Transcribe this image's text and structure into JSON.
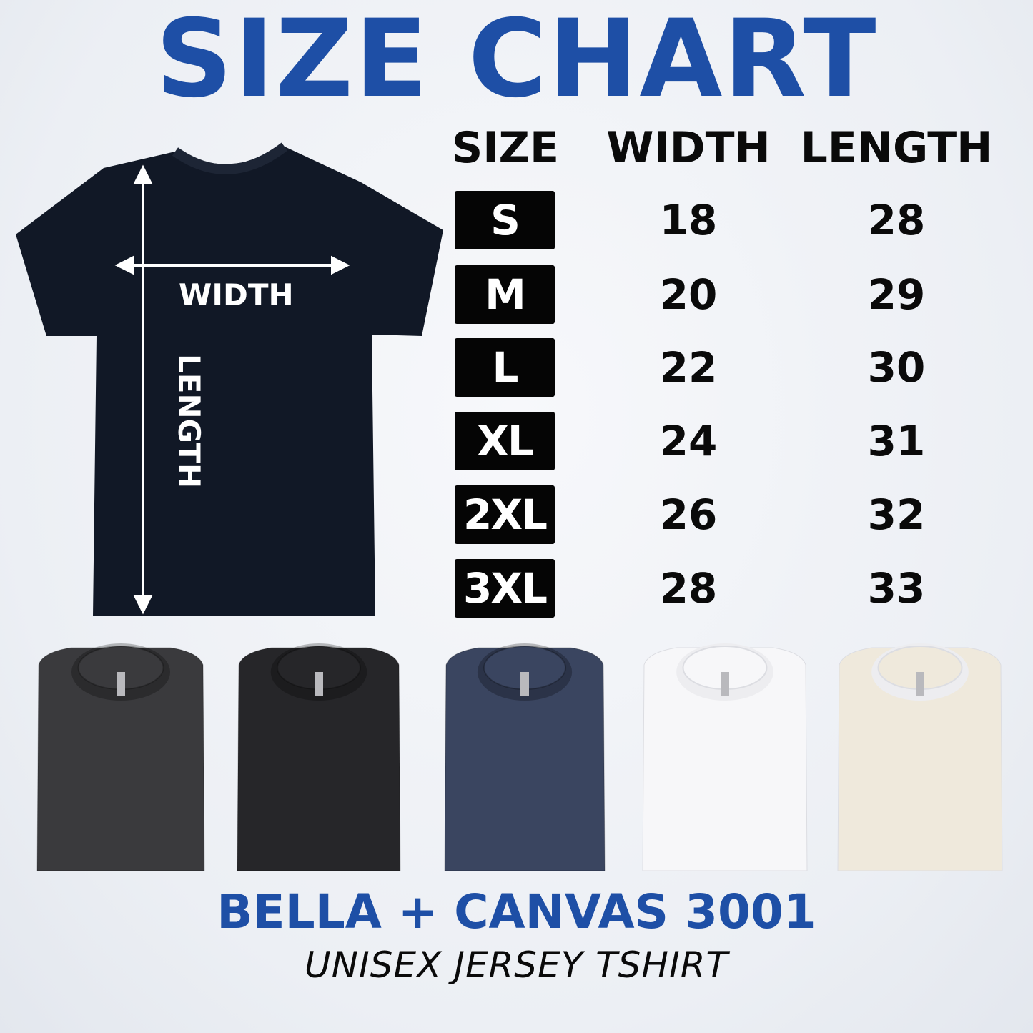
{
  "title": "SIZE CHART",
  "table": {
    "headers": [
      "SIZE",
      "WIDTH",
      "LENGTH"
    ],
    "rows": [
      {
        "size": "S",
        "width": "18",
        "length": "28"
      },
      {
        "size": "M",
        "width": "20",
        "length": "29"
      },
      {
        "size": "L",
        "width": "22",
        "length": "30"
      },
      {
        "size": "XL",
        "width": "24",
        "length": "31"
      },
      {
        "size": "2XL",
        "width": "26",
        "length": "32"
      },
      {
        "size": "3XL",
        "width": "28",
        "length": "33"
      }
    ]
  },
  "diagram": {
    "width_label": "WIDTH",
    "length_label": "LENGTH",
    "shirt_color": "#111826"
  },
  "folded_shirt_colors": [
    "#3a3a3d",
    "#262629",
    "#3a4560",
    "#f7f7f9",
    "#efe9dc"
  ],
  "brand": "BELLA + CANVAS 3001",
  "subtitle": "UNISEX JERSEY TSHIRT",
  "colors": {
    "accent": "#1e4fa6",
    "badge": "#050505"
  }
}
